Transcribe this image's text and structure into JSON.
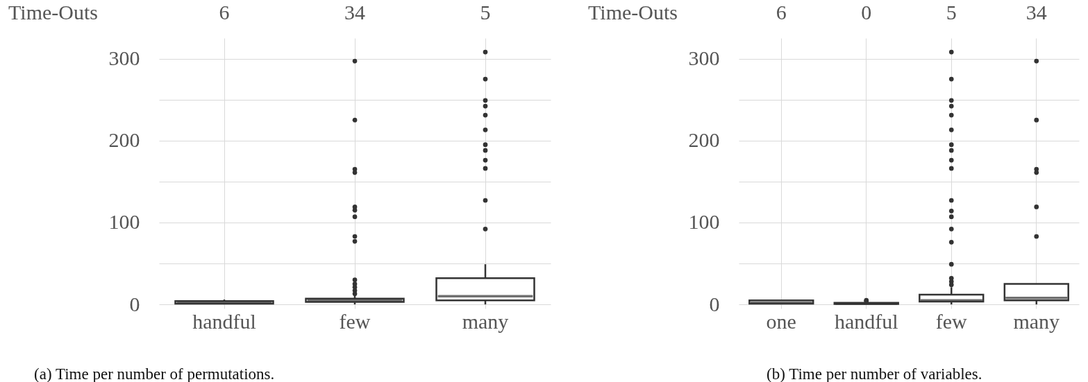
{
  "chart_data": [
    {
      "type": "box",
      "title": "(a) Time per number of permutations.",
      "categories": [
        "handful",
        "few",
        "many"
      ],
      "ylim": [
        -5,
        325
      ],
      "yticks": [
        0,
        {
          "value": 50,
          "label": null
        },
        100,
        {
          "value": 150,
          "label": null
        },
        200,
        {
          "value": 250,
          "label": null
        },
        300
      ],
      "grid": true,
      "annotations": [
        "Time-Outs",
        "6",
        "34",
        "5"
      ],
      "series": [
        {
          "color": "#333333",
          "boxes": [
            {
              "low": 0,
              "q1": 1,
              "median": 2,
              "q3": 4,
              "high": 6
            },
            {
              "low": 0,
              "q1": 3,
              "median": 5,
              "q3": 7,
              "high": 12,
              "outliers": [
                297,
                225,
                165,
                161,
                119,
                115,
                107,
                83,
                77,
                30,
                25,
                21,
                17,
                13
              ]
            },
            {
              "low": 0,
              "q1": 5,
              "median": 10,
              "q3": 32,
              "high": 49,
              "outliers": [
                308,
                275,
                249,
                242,
                231,
                213,
                195,
                188,
                176,
                166,
                127,
                92
              ]
            }
          ]
        }
      ]
    },
    {
      "type": "box",
      "title": "(b) Time per number of variables.",
      "categories": [
        "one",
        "handful",
        "few",
        "many"
      ],
      "ylim": [
        -5,
        325
      ],
      "yticks": [
        0,
        {
          "value": 50,
          "label": null
        },
        100,
        {
          "value": 150,
          "label": null
        },
        200,
        {
          "value": 250,
          "label": null
        },
        300
      ],
      "grid": true,
      "annotations": [
        "Time-Outs",
        "6",
        "0",
        "5",
        "34"
      ],
      "series": [
        {
          "color": "#333333",
          "boxes": [
            {
              "low": 0,
              "q1": 1,
              "median": 2,
              "q3": 5,
              "high": 6
            },
            {
              "low": 0,
              "q1": 0.5,
              "median": 1,
              "q3": 2,
              "high": 3,
              "outliers": [
                5,
                4
              ]
            },
            {
              "low": 0,
              "q1": 3.5,
              "median": 5,
              "q3": 12,
              "high": 21,
              "outliers": [
                308,
                275,
                249,
                242,
                231,
                213,
                195,
                188,
                176,
                166,
                127,
                114,
                107,
                92,
                76,
                49,
                32,
                28,
                24
              ]
            },
            {
              "low": 0,
              "q1": 5,
              "median": 8,
              "q3": 25,
              "high": 25,
              "outliers": [
                297,
                225,
                165,
                161,
                119,
                83
              ]
            }
          ]
        }
      ]
    }
  ]
}
